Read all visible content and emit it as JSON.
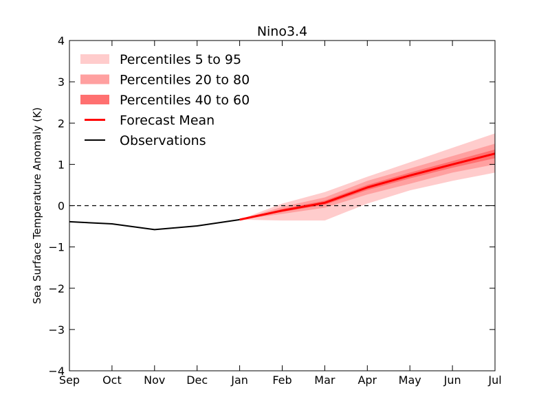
{
  "chart_data": {
    "type": "line",
    "title": "Nino3.4",
    "xlabel": "",
    "ylabel": "Sea Surface Temperature Anomaly (K)",
    "categories": [
      "Sep",
      "Oct",
      "Nov",
      "Dec",
      "Jan",
      "Feb",
      "Mar",
      "Apr",
      "May",
      "Jun",
      "Jul"
    ],
    "ylim": [
      -4,
      4
    ],
    "yticks": [
      "4",
      "3",
      "2",
      "1",
      "0",
      "−1",
      "−2",
      "−3",
      "−4"
    ],
    "yticks_values": [
      4,
      3,
      2,
      1,
      0,
      -1,
      -2,
      -3,
      -4
    ],
    "reference_line": {
      "y": 0,
      "style": "dashed"
    },
    "legend_position": "upper-left",
    "observations": {
      "name": "Observations",
      "x": [
        "Sep",
        "Oct",
        "Nov",
        "Dec",
        "Jan"
      ],
      "values": [
        -0.39,
        -0.44,
        -0.58,
        -0.49,
        -0.34
      ],
      "color": "#000000"
    },
    "forecast_mean": {
      "name": "Forecast Mean",
      "x": [
        "Jan",
        "Feb",
        "Mar",
        "Apr",
        "May",
        "Jun",
        "Jul"
      ],
      "values": [
        -0.34,
        -0.12,
        0.07,
        0.44,
        0.73,
        1.0,
        1.26
      ],
      "color": "#ff0000"
    },
    "bands": [
      {
        "name": "Percentiles 5 to 95",
        "color": "#ffcccc",
        "x": [
          "Jan",
          "Feb",
          "Mar",
          "Apr",
          "May",
          "Jun",
          "Jul"
        ],
        "lower": [
          -0.34,
          -0.36,
          -0.36,
          0.05,
          0.37,
          0.6,
          0.8
        ],
        "upper": [
          -0.34,
          0.05,
          0.33,
          0.7,
          1.05,
          1.4,
          1.75
        ]
      },
      {
        "name": "Percentiles 20 to 80",
        "color": "#ffa0a0",
        "x": [
          "Jan",
          "Feb",
          "Mar",
          "Apr",
          "May",
          "Jun",
          "Jul"
        ],
        "lower": [
          -0.34,
          -0.2,
          -0.05,
          0.27,
          0.53,
          0.8,
          1.0
        ],
        "upper": [
          -0.34,
          -0.03,
          0.2,
          0.6,
          0.9,
          1.2,
          1.5
        ]
      },
      {
        "name": "Percentiles 40 to 60",
        "color": "#ff7070",
        "x": [
          "Jan",
          "Feb",
          "Mar",
          "Apr",
          "May",
          "Jun",
          "Jul"
        ],
        "lower": [
          -0.34,
          -0.15,
          0.02,
          0.38,
          0.66,
          0.92,
          1.15
        ],
        "upper": [
          -0.34,
          -0.08,
          0.12,
          0.5,
          0.8,
          1.08,
          1.36
        ]
      }
    ],
    "legend": [
      {
        "label": "Percentiles 5 to 95",
        "kind": "patch",
        "color": "#ffcccc"
      },
      {
        "label": "Percentiles 20 to 80",
        "kind": "patch",
        "color": "#ffa0a0"
      },
      {
        "label": "Percentiles 40 to 60",
        "kind": "patch",
        "color": "#ff7070"
      },
      {
        "label": "Forecast Mean",
        "kind": "line",
        "color": "#ff0000"
      },
      {
        "label": "Observations",
        "kind": "line",
        "color": "#000000"
      }
    ]
  }
}
